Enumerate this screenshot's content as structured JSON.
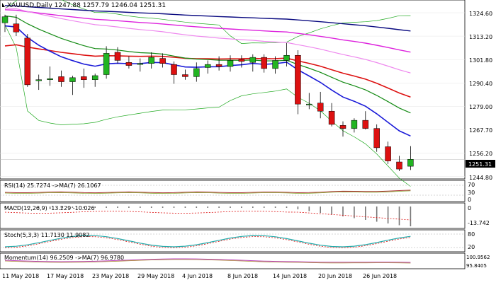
{
  "window": {
    "main_title": "XAUUSD,Daily  1247.88 1257.79 1246.04 1251.31",
    "rsi_label": "RSI(14) 25.7274  ->MA(7) 26.1067",
    "macd_label": "MACD(12,26,9) -13.229 -10.026",
    "stoch_label": "Stoch(5,3,3) 11.7130 11.9082",
    "momentum_label": "Momentum(14) 96.2509  ->MA(7) 96.9780"
  },
  "price_axis": {
    "labels": [
      "1324.60",
      "1313.20",
      "1301.80",
      "1290.40",
      "1279.00",
      "1267.70",
      "1256.20",
      "1244.80"
    ],
    "current_price": "1251.31"
  },
  "rsi_axis": [
    "70",
    "30",
    "0"
  ],
  "macd_axis": [
    "0",
    "-13.742"
  ],
  "stoch_axis": [
    "80",
    "20"
  ],
  "momentum_axis": [
    "100.9562",
    "95.8405"
  ],
  "date_axis": [
    "11 May 2018",
    "17 May 2018",
    "23 May 2018",
    "29 May 2018",
    "4 Jun 2018",
    "8 Jun 2018",
    "14 Jun 2018",
    "20 Jun 2018",
    "26 Jun 2018"
  ],
  "colors": {
    "bull": "#22b422",
    "bear": "#dd1111",
    "ema_fast": "#1a1ad8",
    "ema_mid": "#138a13",
    "ema_slow_red": "#dd1111",
    "sma_magenta": "#dd22dd",
    "sma_pink": "#ee88ee",
    "ema_navy": "#0a0a80",
    "bands": "#22aa22",
    "rsi": "#aa3333",
    "macd": "#777777",
    "stoch": "#22aaaa",
    "momentum": "#bb44bb"
  },
  "chart_data": {
    "type": "candlestick",
    "symbol": "XAUUSD",
    "timeframe": "Daily",
    "ylim": [
      1242,
      1328
    ],
    "candles": [
      {
        "o": 1318.5,
        "h": 1322.5,
        "l": 1314.0,
        "c": 1321.5
      },
      {
        "o": 1318.0,
        "h": 1322.5,
        "l": 1312.0,
        "c": 1314.0
      },
      {
        "o": 1311.0,
        "h": 1313.0,
        "l": 1287.0,
        "c": 1288.0
      },
      {
        "o": 1290.0,
        "h": 1293.0,
        "l": 1285.5,
        "c": 1290.5
      },
      {
        "o": 1290.5,
        "h": 1297.0,
        "l": 1287.5,
        "c": 1291.0
      },
      {
        "o": 1292.0,
        "h": 1295.0,
        "l": 1287.0,
        "c": 1289.5
      },
      {
        "o": 1289.5,
        "h": 1292.5,
        "l": 1283.0,
        "c": 1291.5
      },
      {
        "o": 1292.0,
        "h": 1296.0,
        "l": 1286.5,
        "c": 1290.5
      },
      {
        "o": 1290.5,
        "h": 1293.5,
        "l": 1287.0,
        "c": 1292.5
      },
      {
        "o": 1293.0,
        "h": 1307.0,
        "l": 1291.0,
        "c": 1303.5
      },
      {
        "o": 1304.0,
        "h": 1306.5,
        "l": 1298.5,
        "c": 1300.0
      },
      {
        "o": 1299.0,
        "h": 1302.0,
        "l": 1296.0,
        "c": 1297.5
      },
      {
        "o": 1298.0,
        "h": 1301.0,
        "l": 1294.5,
        "c": 1298.5
      },
      {
        "o": 1298.5,
        "h": 1304.0,
        "l": 1296.0,
        "c": 1301.5
      },
      {
        "o": 1301.0,
        "h": 1303.5,
        "l": 1296.5,
        "c": 1298.5
      },
      {
        "o": 1298.0,
        "h": 1299.5,
        "l": 1288.5,
        "c": 1293.0
      },
      {
        "o": 1293.0,
        "h": 1295.5,
        "l": 1290.5,
        "c": 1292.0
      },
      {
        "o": 1292.0,
        "h": 1299.0,
        "l": 1289.5,
        "c": 1296.0
      },
      {
        "o": 1296.5,
        "h": 1300.0,
        "l": 1293.5,
        "c": 1298.0
      },
      {
        "o": 1298.0,
        "h": 1302.0,
        "l": 1295.0,
        "c": 1297.0
      },
      {
        "o": 1297.0,
        "h": 1302.5,
        "l": 1294.5,
        "c": 1300.0
      },
      {
        "o": 1300.5,
        "h": 1302.5,
        "l": 1296.5,
        "c": 1299.5
      },
      {
        "o": 1299.0,
        "h": 1303.0,
        "l": 1294.5,
        "c": 1301.5
      },
      {
        "o": 1301.5,
        "h": 1303.0,
        "l": 1294.0,
        "c": 1296.0
      },
      {
        "o": 1296.0,
        "h": 1302.0,
        "l": 1293.5,
        "c": 1300.0
      },
      {
        "o": 1300.0,
        "h": 1308.5,
        "l": 1297.0,
        "c": 1302.5
      },
      {
        "o": 1302.5,
        "h": 1305.0,
        "l": 1273.5,
        "c": 1278.5
      },
      {
        "o": 1278.5,
        "h": 1284.0,
        "l": 1276.0,
        "c": 1278.5
      },
      {
        "o": 1279.0,
        "h": 1284.5,
        "l": 1271.5,
        "c": 1275.0
      },
      {
        "o": 1275.0,
        "h": 1279.0,
        "l": 1267.5,
        "c": 1268.5
      },
      {
        "o": 1268.0,
        "h": 1270.0,
        "l": 1262.5,
        "c": 1266.5
      },
      {
        "o": 1266.5,
        "h": 1271.5,
        "l": 1264.5,
        "c": 1270.5
      },
      {
        "o": 1270.5,
        "h": 1275.0,
        "l": 1266.0,
        "c": 1266.5
      },
      {
        "o": 1266.5,
        "h": 1268.5,
        "l": 1255.0,
        "c": 1257.0
      },
      {
        "o": 1257.5,
        "h": 1260.0,
        "l": 1249.0,
        "c": 1250.5
      },
      {
        "o": 1250.0,
        "h": 1253.0,
        "l": 1245.5,
        "c": 1246.5
      },
      {
        "o": 1247.88,
        "h": 1257.79,
        "l": 1246.04,
        "c": 1251.31
      }
    ]
  }
}
